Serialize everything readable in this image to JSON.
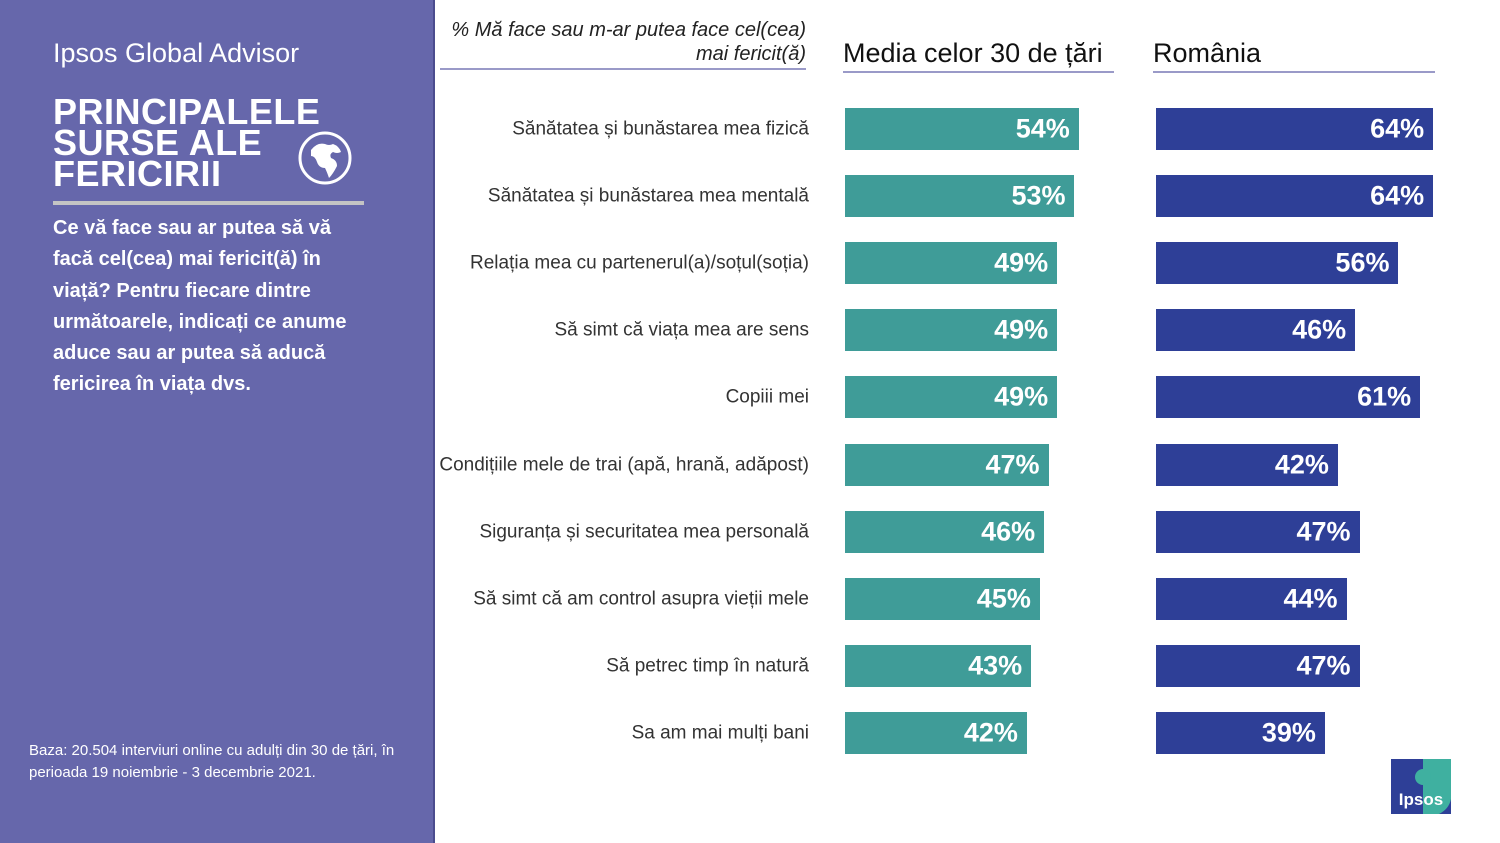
{
  "sidebar": {
    "brand": "Ipsos Global Advisor",
    "title_lines": [
      "PRINCIPALELE",
      "SURSE ALE",
      "FERICIRII"
    ],
    "globe_icon": "globe-icon",
    "question": "Ce vă face sau ar putea să vă facă cel(cea) mai fericit(ă) în viață? Pentru fiecare dintre următoarele, indicați ce anume aduce sau ar putea să aducă fericirea în viața dvs.",
    "base_note": "Baza: 20.504 interviuri online cu adulți din 30 de țări, în perioada 19 noiembrie - 3 decembrie 2021."
  },
  "logo": {
    "text": "Ipsos"
  },
  "colors": {
    "sidebar": "#6667ab",
    "average": "#3f9c98",
    "romania": "#2e3f97"
  },
  "chart_data": {
    "type": "bar",
    "orientation": "horizontal",
    "metric_label": "% Mă face sau m-ar putea face cel(cea) mai fericit(ă)",
    "categories": [
      "Sănătatea și bunăstarea mea fizică",
      "Sănătatea și bunăstarea mea mentală",
      "Relația mea cu partenerul(a)/soțul(soția)",
      "Să simt că viața mea are sens",
      "Copiii mei",
      "Condițiile mele de trai (apă, hrană, adăpost)",
      "Siguranța și securitatea mea personală",
      "Să simt că am control asupra vieții mele",
      "Să petrec timp în natură",
      "Sa am mai mulți bani"
    ],
    "series": [
      {
        "name": "Media celor 30 de țări",
        "values": [
          54,
          53,
          49,
          49,
          49,
          47,
          46,
          45,
          43,
          42
        ]
      },
      {
        "name": "România",
        "values": [
          64,
          64,
          56,
          46,
          61,
          42,
          47,
          44,
          47,
          39
        ]
      }
    ],
    "value_suffix": "%",
    "xlim": [
      0,
      100
    ],
    "grid": false
  }
}
